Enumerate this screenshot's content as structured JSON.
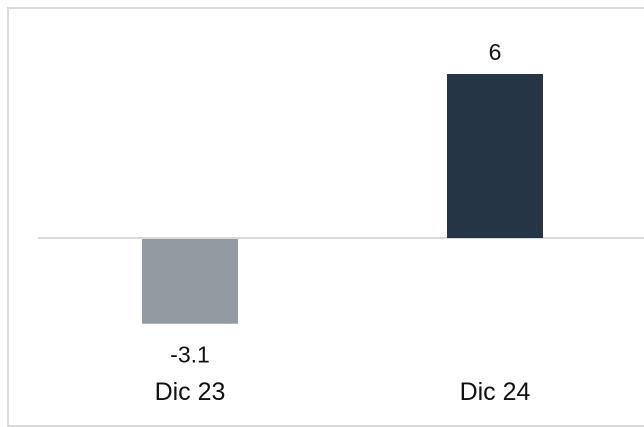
{
  "chart_data": {
    "type": "bar",
    "categories": [
      "Dic 23",
      "Dic 24"
    ],
    "values": [
      -3.1,
      6
    ],
    "data_labels": [
      "-3.1",
      "6"
    ],
    "colors": [
      "#939aa1",
      "#253545"
    ],
    "ylim": [
      -3.1,
      6
    ],
    "grid": false,
    "legend": "none",
    "baseline_color": "#d9d9d9"
  }
}
